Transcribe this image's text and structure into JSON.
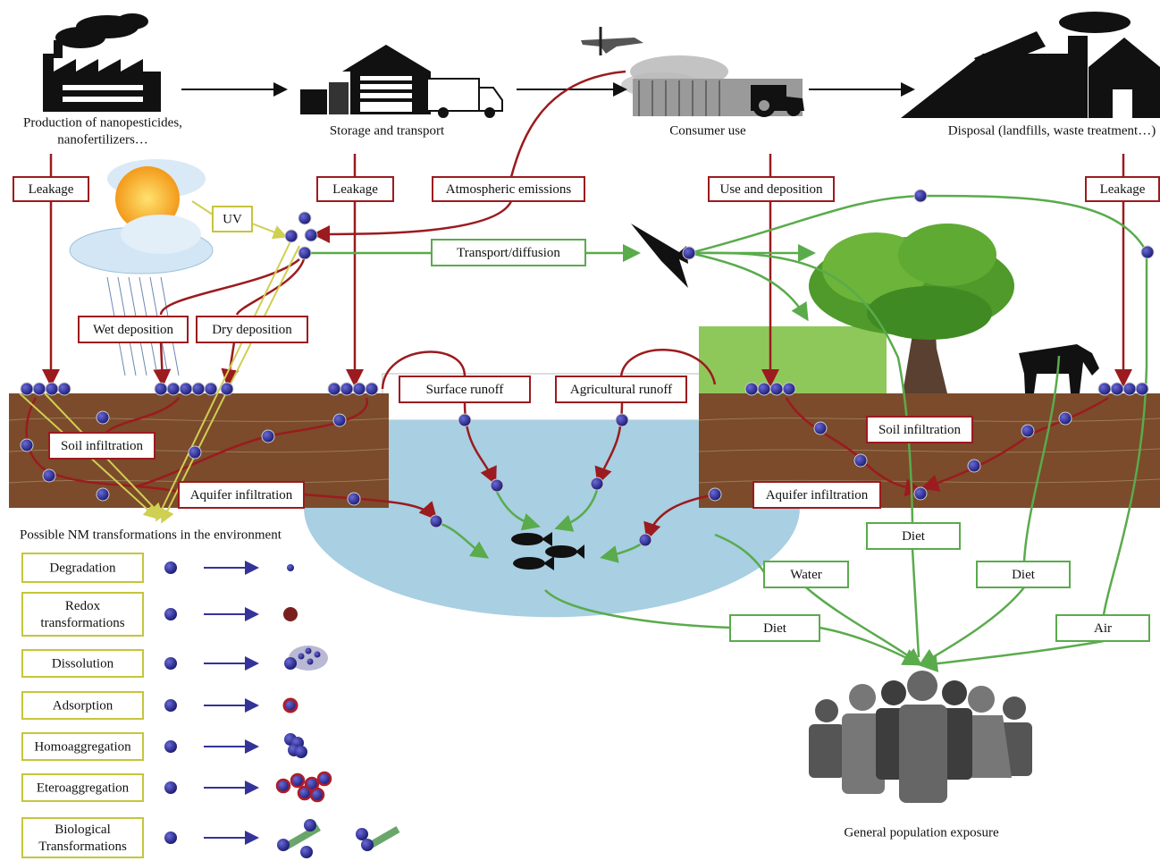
{
  "lifecycle": {
    "production": [
      "Production of nanopesticides,",
      "nanofertilizers…"
    ],
    "storage": "Storage and transport",
    "consumer": "Consumer use",
    "disposal": "Disposal (landfills, waste treatment…)"
  },
  "pathways": {
    "leakage_production": "Leakage",
    "leakage_storage": "Leakage",
    "atmospheric_emissions": "Atmospheric emissions",
    "use_and_deposition": "Use and deposition",
    "leakage_disposal": "Leakage",
    "uv": "UV",
    "transport_diffusion": "Transport/diffusion",
    "wet_deposition": "Wet deposition",
    "dry_deposition": "Dry deposition",
    "surface_runoff": "Surface runoff",
    "agricultural_runoff": "Agricultural runoff",
    "soil_infiltration_left": "Soil infiltration",
    "aquifer_infiltration_left": "Aquifer infiltration",
    "soil_infiltration_right": "Soil infiltration",
    "aquifer_infiltration_right": "Aquifer infiltration"
  },
  "exposure": {
    "diet_plants": "Diet",
    "water": "Water",
    "diet_animals": "Diet",
    "diet_fish": "Diet",
    "air": "Air",
    "population": "General population exposure"
  },
  "transformations": {
    "title": "Possible NM transformations in the environment",
    "items": [
      [
        "Degradation"
      ],
      [
        "Redox",
        "transformations"
      ],
      [
        "Dissolution"
      ],
      [
        "Adsorption"
      ],
      [
        "Homoaggregation"
      ],
      [
        "Eteroaggregation"
      ],
      [
        "Biological",
        "Transformations"
      ]
    ]
  }
}
